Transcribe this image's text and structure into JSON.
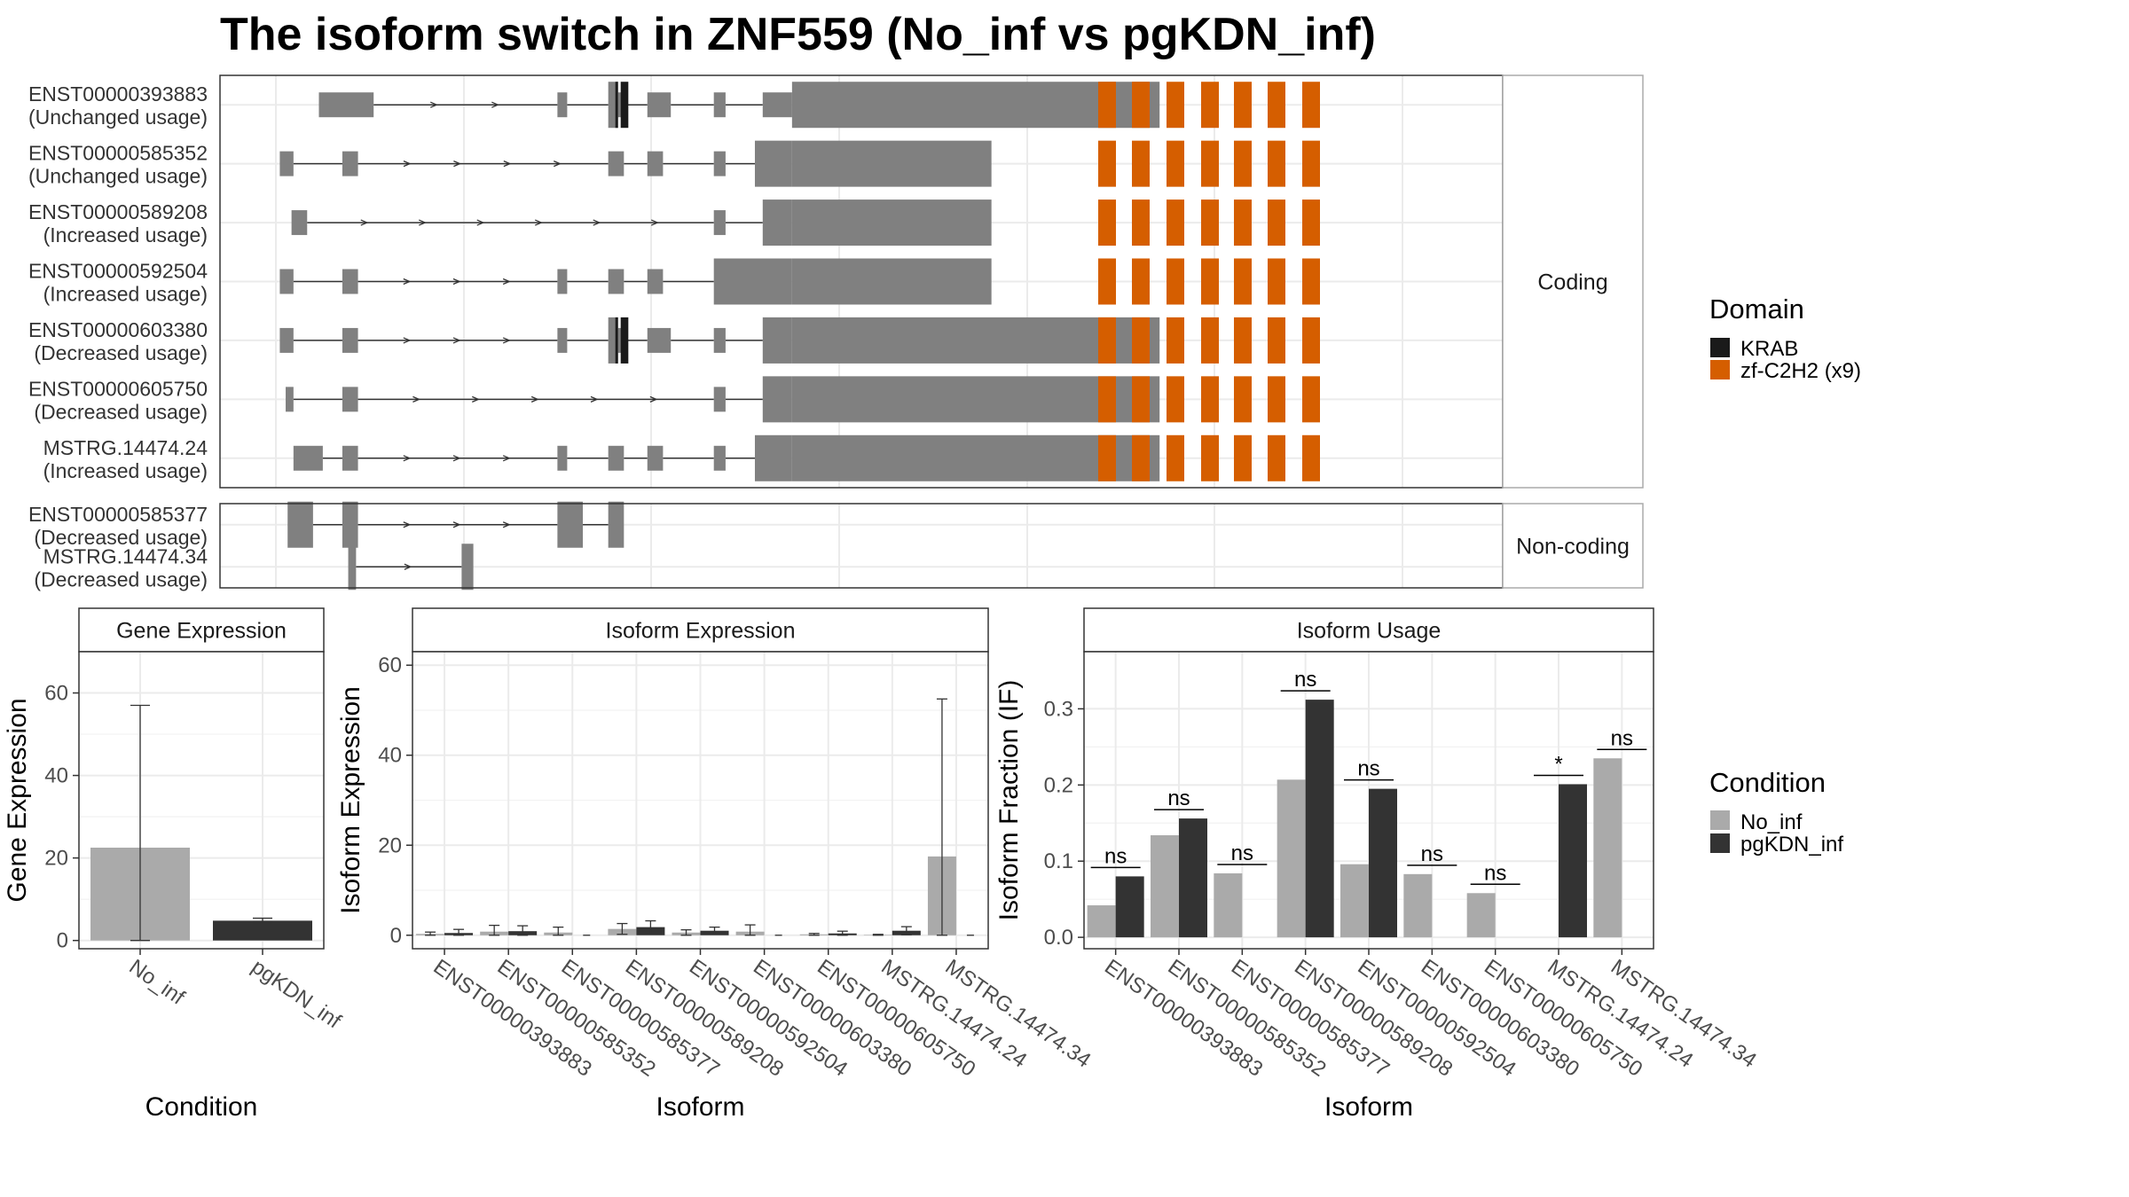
{
  "title": "The isoform switch in ZNF559 (No_inf vs pgKDN_inf)",
  "colors": {
    "exon": "#808080",
    "krab": "#1a1a1a",
    "znf": "#d55e00",
    "no_inf": "#aaaaaa",
    "pgkdn_inf": "#333333"
  },
  "chart_data": [
    {
      "type": "gene-structure",
      "panels": [
        {
          "strip": "Coding",
          "isoforms": [
            {
              "id": "ENST00000393883",
              "usage": "(Unchanged usage)",
              "krab": true,
              "znf": true,
              "exons": [
                [
                  1.1,
                  2.5,
                  0
                ],
                [
                  7.2,
                  7.45,
                  0
                ],
                [
                  8.5,
                  8.75,
                  1
                ],
                [
                  8.75,
                  8.9,
                  0
                ],
                [
                  9.5,
                  10.1,
                  0
                ],
                [
                  11.2,
                  11.5,
                  0
                ],
                [
                  12.45,
                  13.2,
                  0
                ],
                [
                  13.2,
                  22.6,
                  1
                ]
              ]
            },
            {
              "id": "ENST00000585352",
              "usage": "(Unchanged usage)",
              "krab": false,
              "znf": true,
              "exons": [
                [
                  0.1,
                  0.45,
                  0
                ],
                [
                  1.7,
                  2.1,
                  0
                ],
                [
                  8.5,
                  8.9,
                  0
                ],
                [
                  9.5,
                  9.9,
                  0
                ],
                [
                  11.2,
                  11.5,
                  0
                ],
                [
                  12.25,
                  13.2,
                  1
                ],
                [
                  13.2,
                  18.3,
                  1
                ]
              ]
            },
            {
              "id": "ENST00000589208",
              "usage": "(Increased usage)",
              "krab": false,
              "znf": true,
              "exons": [
                [
                  0.4,
                  0.8,
                  0
                ],
                [
                  11.2,
                  11.5,
                  0
                ],
                [
                  12.45,
                  13.2,
                  1
                ],
                [
                  13.2,
                  18.3,
                  1
                ]
              ]
            },
            {
              "id": "ENST00000592504",
              "usage": "(Increased usage)",
              "krab": false,
              "znf": true,
              "exons": [
                [
                  0.1,
                  0.45,
                  0
                ],
                [
                  1.7,
                  2.1,
                  0
                ],
                [
                  7.2,
                  7.45,
                  0
                ],
                [
                  8.5,
                  8.9,
                  0
                ],
                [
                  9.5,
                  9.9,
                  0
                ],
                [
                  11.2,
                  13.2,
                  1
                ],
                [
                  13.2,
                  18.3,
                  1
                ]
              ]
            },
            {
              "id": "ENST00000603380",
              "usage": "(Decreased usage)",
              "krab": true,
              "znf": true,
              "exons": [
                [
                  0.1,
                  0.45,
                  0
                ],
                [
                  1.7,
                  2.1,
                  0
                ],
                [
                  7.2,
                  7.45,
                  0
                ],
                [
                  8.5,
                  8.75,
                  1
                ],
                [
                  8.75,
                  8.9,
                  0
                ],
                [
                  9.5,
                  10.1,
                  0
                ],
                [
                  11.2,
                  11.5,
                  0
                ],
                [
                  12.45,
                  13.2,
                  1
                ],
                [
                  13.2,
                  22.6,
                  1
                ]
              ]
            },
            {
              "id": "ENST00000605750",
              "usage": "(Decreased usage)",
              "krab": false,
              "znf": true,
              "exons": [
                [
                  0.25,
                  0.45,
                  0
                ],
                [
                  1.7,
                  2.1,
                  0
                ],
                [
                  11.2,
                  11.5,
                  0
                ],
                [
                  12.45,
                  13.2,
                  1
                ],
                [
                  13.2,
                  22.6,
                  1
                ]
              ]
            },
            {
              "id": "MSTRG.14474.24",
              "usage": "(Increased usage)",
              "krab": false,
              "znf": true,
              "exons": [
                [
                  0.45,
                  1.2,
                  0
                ],
                [
                  1.7,
                  2.1,
                  0
                ],
                [
                  7.2,
                  7.45,
                  0
                ],
                [
                  8.5,
                  8.9,
                  0
                ],
                [
                  9.5,
                  9.9,
                  0
                ],
                [
                  11.2,
                  11.5,
                  0
                ],
                [
                  12.25,
                  13.2,
                  1
                ],
                [
                  13.2,
                  22.6,
                  1
                ]
              ]
            }
          ]
        },
        {
          "strip": "Non-coding",
          "isoforms": [
            {
              "id": "ENST00000585377",
              "usage": "(Decreased usage)",
              "krab": false,
              "znf": false,
              "exons": [
                [
                  0.3,
                  0.95,
                  1
                ],
                [
                  1.7,
                  2.1,
                  1
                ],
                [
                  7.2,
                  7.85,
                  1
                ],
                [
                  8.5,
                  8.9,
                  1
                ]
              ]
            },
            {
              "id": "MSTRG.14474.34",
              "usage": "(Decreased usage)",
              "krab": false,
              "znf": false,
              "exons": [
                [
                  1.85,
                  2.05,
                  1
                ],
                [
                  4.75,
                  5.05,
                  1
                ]
              ]
            }
          ]
        }
      ],
      "legend": {
        "title": "Domain",
        "items": [
          "KRAB",
          "zf-C2H2 (x9)"
        ]
      }
    },
    {
      "type": "bar",
      "strip": "Gene Expression",
      "xlabel": "Condition",
      "ylabel": "Gene Expression",
      "categories": [
        "No_inf",
        "pgKDN_inf"
      ],
      "values": [
        22.5,
        4.8
      ],
      "errors": [
        34.5,
        0.6
      ],
      "ylim": [
        -2,
        70
      ],
      "yticks": [
        0,
        20,
        40,
        60
      ]
    },
    {
      "type": "bar",
      "strip": "Isoform Expression",
      "xlabel": "Isoform",
      "ylabel": "Isoform Expression",
      "categories": [
        "ENST00000393883",
        "ENST00000585352",
        "ENST00000585377",
        "ENST00000589208",
        "ENST00000592504",
        "ENST00000603380",
        "ENST00000605750",
        "MSTRG.14474.24",
        "MSTRG.14474.34"
      ],
      "series": [
        {
          "name": "No_inf",
          "values": [
            0.3,
            0.8,
            0.6,
            1.4,
            0.6,
            0.8,
            0.2,
            0.1,
            17.5
          ],
          "errors": [
            0.4,
            1.4,
            1.2,
            1.2,
            0.6,
            1.5,
            0.2,
            0.1,
            35
          ]
        },
        {
          "name": "pgKDN_inf",
          "values": [
            0.5,
            0.9,
            0.0,
            1.8,
            1.0,
            0.0,
            0.4,
            1.0,
            0.0
          ],
          "errors": [
            0.8,
            1.2,
            0.0,
            1.4,
            0.8,
            0.0,
            0.5,
            0.9,
            0.0
          ]
        }
      ],
      "ylim": [
        -3,
        63
      ],
      "yticks": [
        0,
        20,
        40,
        60
      ]
    },
    {
      "type": "bar",
      "strip": "Isoform Usage",
      "xlabel": "Isoform",
      "ylabel": "Isoform Fraction (IF)",
      "categories": [
        "ENST00000393883",
        "ENST00000585352",
        "ENST00000585377",
        "ENST00000589208",
        "ENST00000592504",
        "ENST00000603380",
        "ENST00000605750",
        "MSTRG.14474.24",
        "MSTRG.14474.34"
      ],
      "series": [
        {
          "name": "No_inf",
          "values": [
            0.042,
            0.134,
            0.084,
            0.207,
            0.096,
            0.083,
            0.058,
            0.0,
            0.235
          ]
        },
        {
          "name": "pgKDN_inf",
          "values": [
            0.08,
            0.156,
            0.0,
            0.312,
            0.195,
            0.0,
            0.0,
            0.201,
            0.0
          ]
        }
      ],
      "significance": [
        "ns",
        "ns",
        "ns",
        "ns",
        "ns",
        "ns",
        "ns",
        "*",
        "ns"
      ],
      "ylim": [
        -0.015,
        0.375
      ],
      "yticks": [
        0.0,
        0.1,
        0.2,
        0.3
      ],
      "ytick_labels": [
        "0.0",
        "0.1",
        "0.2",
        "0.3"
      ]
    }
  ],
  "condition_legend": {
    "title": "Condition",
    "items": [
      "No_inf",
      "pgKDN_inf"
    ]
  }
}
